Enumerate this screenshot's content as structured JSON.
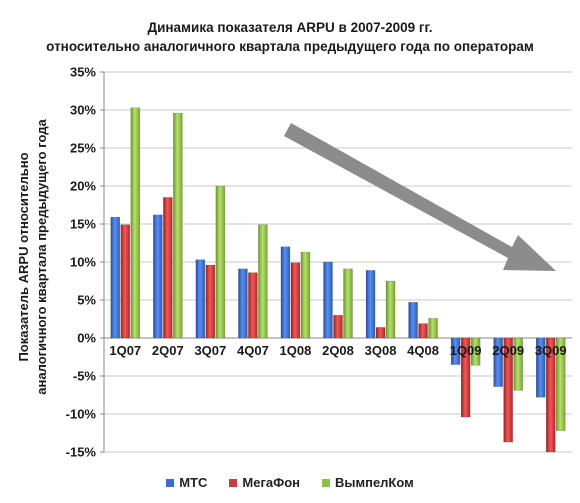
{
  "chart_data": {
    "type": "bar",
    "title": "Динамика показателя ARPU в 2007-2009 гг.",
    "subtitle": "относительно аналогичного квартала предыдущего года по операторам",
    "ylabel_line1": "Показатель ARPU относительно",
    "ylabel_line2": "аналогичного квартала предыдущего года",
    "categories": [
      "1Q07",
      "2Q07",
      "3Q07",
      "4Q07",
      "1Q08",
      "2Q08",
      "3Q08",
      "4Q08",
      "1Q09",
      "2Q09",
      "3Q09"
    ],
    "ylim": [
      -15,
      35
    ],
    "yticks": [
      "-15%",
      "-10%",
      "-5%",
      "0%",
      "5%",
      "10%",
      "15%",
      "20%",
      "25%",
      "30%",
      "35%"
    ],
    "grid": true,
    "legend_position": "bottom",
    "series": [
      {
        "name": "МТС",
        "color": "#3a6fd0",
        "values": [
          15.9,
          16.2,
          10.3,
          9.1,
          12.0,
          10.0,
          8.9,
          4.7,
          -3.5,
          -6.4,
          -7.8
        ]
      },
      {
        "name": "МегаФон",
        "color": "#d03a3a",
        "values": [
          14.9,
          18.5,
          9.6,
          8.6,
          9.9,
          3.0,
          1.4,
          1.9,
          -10.4,
          -13.7,
          -15.0
        ]
      },
      {
        "name": "ВымпелКом",
        "color": "#8fc140",
        "values": [
          30.3,
          29.6,
          20.0,
          14.9,
          11.3,
          9.1,
          7.5,
          2.6,
          -3.6,
          -6.9,
          -12.2
        ]
      }
    ],
    "annotation": "downward-trend-arrow"
  }
}
